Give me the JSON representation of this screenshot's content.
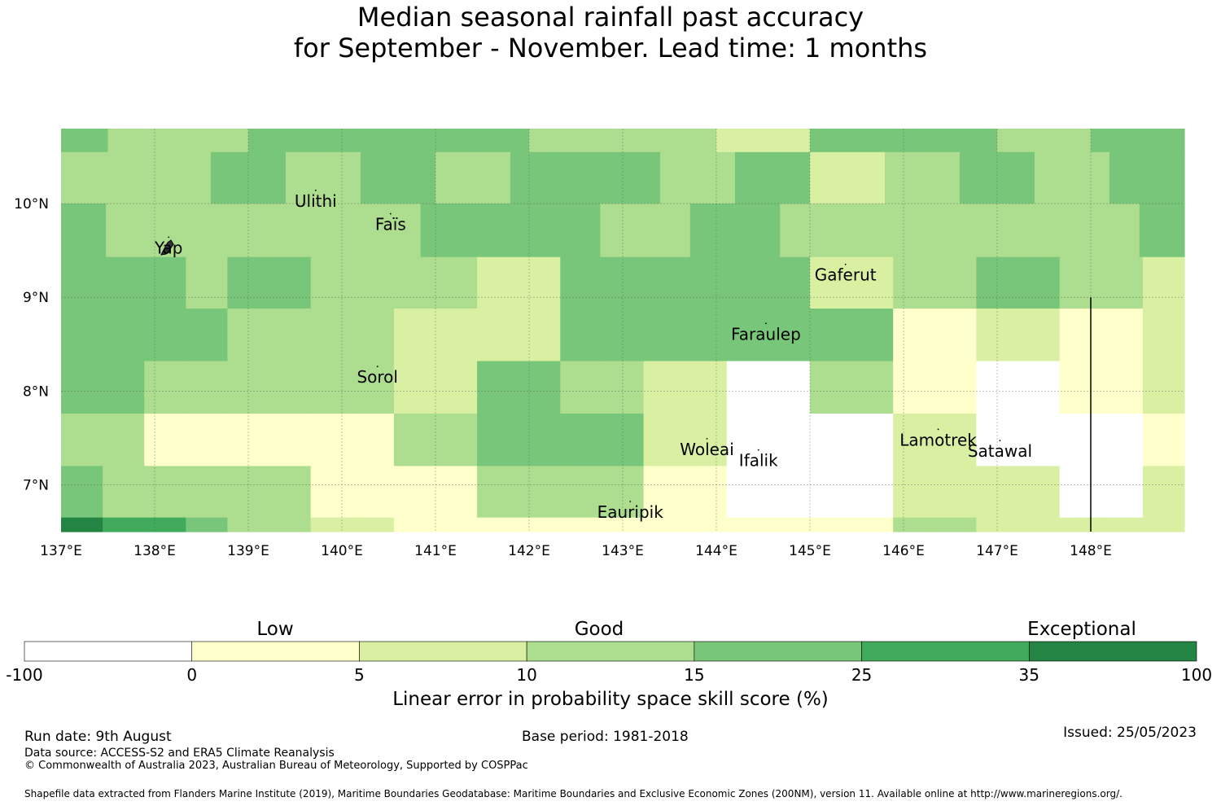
{
  "title": {
    "line1": "Median seasonal rainfall past accuracy",
    "line2": "for September - November. Lead time: 1 months"
  },
  "map": {
    "lon_range": [
      137.0,
      149.0
    ],
    "lat_range": [
      6.5,
      10.8
    ],
    "cell_width_deg": 0.8333,
    "x_ticks": [
      "137°E",
      "138°E",
      "139°E",
      "140°E",
      "141°E",
      "142°E",
      "143°E",
      "144°E",
      "145°E",
      "146°E",
      "147°E",
      "148°E"
    ],
    "y_ticks": [
      "10°N",
      "9°N",
      "8°N",
      "7°N"
    ],
    "grid_rows": [
      {
        "lat_top": 10.8,
        "lat_bottom": 10.55,
        "classes": [
          4,
          3,
          3,
          3,
          4,
          4,
          4,
          4,
          4,
          4,
          3,
          3,
          3,
          3,
          2,
          2,
          4,
          4,
          4,
          4,
          3,
          3,
          4,
          4
        ]
      },
      {
        "lat_top": 10.55,
        "lat_bottom": 10.0,
        "classes": [
          3,
          3,
          3,
          3,
          4,
          4,
          3,
          3,
          4,
          4,
          3,
          3,
          4,
          4,
          4,
          4,
          3,
          3,
          4,
          4,
          2,
          2,
          3,
          3,
          4,
          4,
          3,
          3,
          4,
          4
        ]
      },
      {
        "lat_top": 10.0,
        "lat_bottom": 9.43,
        "classes": [
          4,
          3,
          3,
          3,
          3,
          3,
          3,
          3,
          4,
          4,
          4,
          4,
          3,
          3,
          4,
          4,
          3,
          3,
          3,
          3,
          3,
          3,
          3,
          3,
          4
        ]
      },
      {
        "lat_top": 9.43,
        "lat_bottom": 8.88,
        "classes": [
          4,
          4,
          4,
          3,
          4,
          4,
          3,
          3,
          3,
          3,
          2,
          2,
          4,
          4,
          4,
          4,
          4,
          4,
          2,
          2,
          3,
          3,
          4,
          4,
          3,
          3,
          2
        ]
      },
      {
        "lat_top": 8.88,
        "lat_bottom": 8.32,
        "classes": [
          4,
          4,
          4,
          4,
          3,
          3,
          3,
          3,
          2,
          2,
          2,
          2,
          4,
          4,
          4,
          4,
          4,
          4,
          4,
          4,
          1,
          1,
          2,
          2,
          1,
          1,
          2
        ]
      },
      {
        "lat_top": 8.32,
        "lat_bottom": 7.76,
        "classes": [
          4,
          4,
          3,
          3,
          3,
          3,
          3,
          3,
          2,
          2,
          4,
          4,
          3,
          3,
          2,
          2,
          0,
          0,
          3,
          3,
          1,
          1,
          0,
          0,
          1,
          1,
          2
        ]
      },
      {
        "lat_top": 7.76,
        "lat_bottom": 7.2,
        "classes": [
          3,
          3,
          1,
          1,
          1,
          1,
          1,
          1,
          3,
          3,
          4,
          4,
          4,
          4,
          2,
          2,
          0,
          0,
          0,
          0,
          2,
          2,
          0,
          0,
          0,
          0,
          1
        ]
      },
      {
        "lat_top": 7.2,
        "lat_bottom": 6.65,
        "classes": [
          4,
          3,
          3,
          3,
          3,
          3,
          1,
          1,
          1,
          1,
          3,
          3,
          3,
          3,
          1,
          1,
          0,
          0,
          0,
          0,
          2,
          2,
          2,
          2,
          0,
          0,
          2
        ]
      },
      {
        "lat_top": 6.65,
        "lat_bottom": 6.5,
        "classes": [
          6,
          5,
          5,
          4,
          3,
          3,
          2,
          2,
          1,
          1,
          1,
          1,
          1,
          1,
          1,
          1,
          1,
          1,
          1,
          1,
          3,
          3,
          2,
          2,
          2,
          2,
          2
        ]
      }
    ],
    "places": [
      {
        "name": "Ulithi",
        "lon": 139.72,
        "lat": 10.02
      },
      {
        "name": "Faïs",
        "lon": 140.52,
        "lat": 9.77
      },
      {
        "name": "Yap",
        "lon": 138.15,
        "lat": 9.52
      },
      {
        "name": "Gaferut",
        "lon": 145.38,
        "lat": 9.23
      },
      {
        "name": "Faraulep",
        "lon": 144.53,
        "lat": 8.6
      },
      {
        "name": "Sorol",
        "lon": 140.38,
        "lat": 8.14
      },
      {
        "name": "Woleai",
        "lon": 143.9,
        "lat": 7.37
      },
      {
        "name": "Ifalik",
        "lon": 144.45,
        "lat": 7.25
      },
      {
        "name": "Lamotrek",
        "lon": 146.37,
        "lat": 7.47
      },
      {
        "name": "Satawal",
        "lon": 147.03,
        "lat": 7.35
      },
      {
        "name": "Eauripik",
        "lon": 143.08,
        "lat": 6.7
      }
    ],
    "boundary_line": {
      "lon": 148.0,
      "lat_from": 9.0,
      "lat_to": 6.5
    }
  },
  "colorbar": {
    "categories": [
      "Low",
      "Good",
      "Exceptional"
    ],
    "boundaries": [
      "-100",
      "0",
      "5",
      "10",
      "15",
      "25",
      "35",
      "100"
    ],
    "colors": [
      "#ffffff",
      "#ffffcc",
      "#d9f0a3",
      "#addd8e",
      "#78c679",
      "#41ab5d",
      "#238443"
    ],
    "label": "Linear error in probability space skill score (%)"
  },
  "footer": {
    "run_date": "Run date: 9th August",
    "base_period": "Base period: 1981-2018",
    "issued": "Issued: 25/05/2023",
    "data_source": "Data source: ACCESS-S2 and ERA5 Climate Reanalysis",
    "copyright": "© Commonwealth of Australia 2023, Australian Bureau of Meteorology, Supported by COSPPac",
    "shapefile": "Shapefile data extracted from Flanders Marine Institute (2019), Maritime Boundaries Geodatabase: Maritime Boundaries and Exclusive Economic Zones (200NM), version 11. Available online at http://www.marineregions.org/."
  }
}
